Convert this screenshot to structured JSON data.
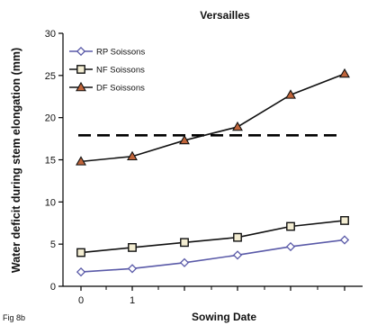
{
  "figure_label": "Fig 8b",
  "chart_data": {
    "type": "line",
    "title": "Versailles",
    "xlabel": "Sowing Date",
    "ylabel": "Water deficit during stem elongation (mm)",
    "ylim": [
      0,
      30
    ],
    "yticks": [
      "0",
      "5",
      "10",
      "15",
      "20",
      "25",
      "30"
    ],
    "xtick_labels": [
      "0",
      "1"
    ],
    "grid": false,
    "legend_position": "top-left",
    "x": [
      0,
      1,
      2,
      3,
      4,
      5
    ],
    "series": [
      {
        "name": "RP Soissons",
        "values": [
          1.7,
          2.1,
          2.8,
          3.7,
          4.7,
          5.5
        ],
        "marker": "diamond",
        "color": "#5a5aa8",
        "fill": "#ffffff"
      },
      {
        "name": "NF Soissons",
        "values": [
          4.0,
          4.6,
          5.2,
          5.8,
          7.1,
          7.8
        ],
        "marker": "square",
        "color": "#111111",
        "fill": "#f3edd2"
      },
      {
        "name": "DF Soissons",
        "values": [
          14.8,
          15.4,
          17.3,
          18.9,
          22.7,
          25.2
        ],
        "marker": "triangle",
        "color": "#111111",
        "fill": "#c0643a"
      }
    ],
    "reference_line": {
      "value": 17.9,
      "style": "dashed",
      "color": "#000000"
    }
  }
}
